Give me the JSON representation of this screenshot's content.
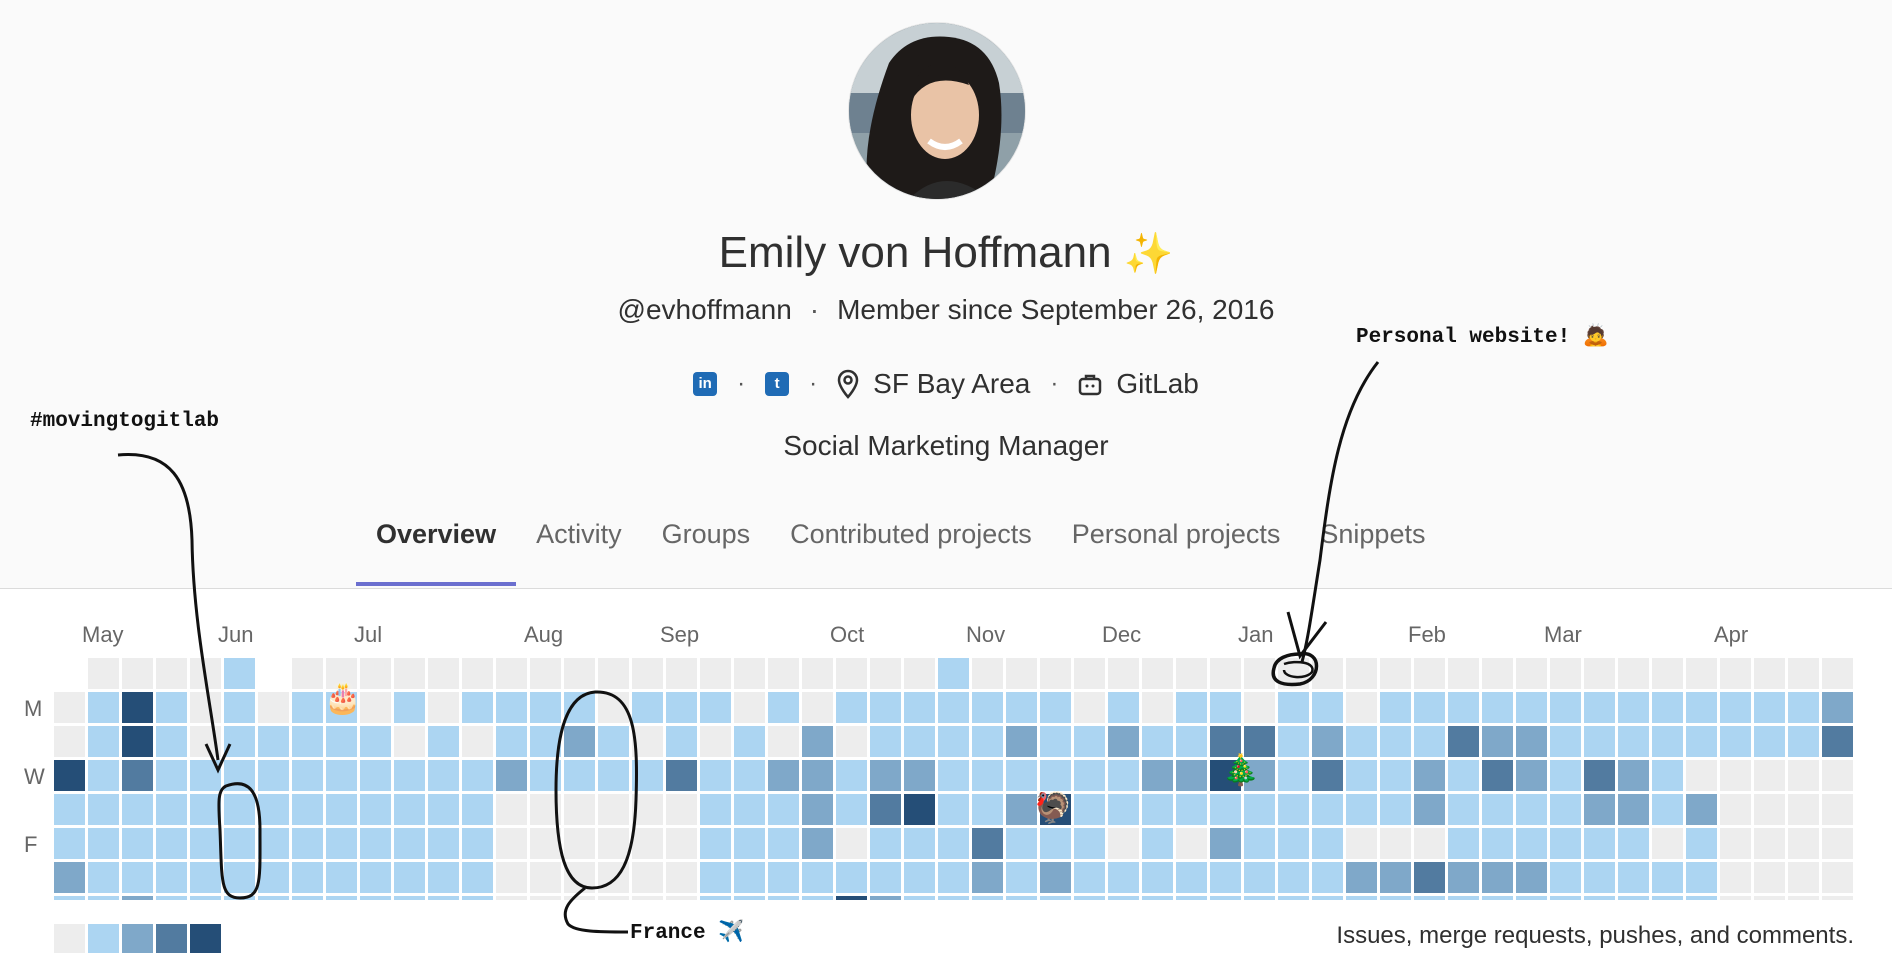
{
  "profile": {
    "name": "Emily von Hoffmann",
    "name_emoji": "✨",
    "username": "@evhoffmann",
    "member_since": "Member since September 26, 2016",
    "separator": "·",
    "location": "SF Bay Area",
    "organization": "GitLab",
    "job_title": "Social Marketing Manager",
    "linkedin_glyph": "in",
    "twitter_glyph": "t"
  },
  "tabs": [
    {
      "label": "Overview",
      "active": true
    },
    {
      "label": "Activity",
      "active": false
    },
    {
      "label": "Groups",
      "active": false
    },
    {
      "label": "Contributed projects",
      "active": false
    },
    {
      "label": "Personal projects",
      "active": false
    },
    {
      "label": "Snippets",
      "active": false
    }
  ],
  "calendar": {
    "months": [
      "May",
      "Jun",
      "Jul",
      "Aug",
      "Sep",
      "Oct",
      "Nov",
      "Dec",
      "Jan",
      "Feb",
      "Mar",
      "Apr"
    ],
    "weekday_labels": [
      "M",
      "W",
      "F"
    ],
    "colors": [
      "#ededed",
      "#acd5f2",
      "#7fa8c9",
      "#527ba0",
      "#254e77"
    ],
    "levels": [
      [
        0,
        1,
        4,
        1,
        0,
        1,
        0,
        1,
        1,
        0,
        1,
        0,
        1,
        1,
        1,
        1,
        0,
        1,
        1,
        1,
        0,
        1,
        0,
        1,
        1,
        1,
        1,
        1,
        1,
        1,
        0,
        1,
        0,
        1,
        1,
        0,
        1,
        1,
        0,
        1,
        1,
        1,
        1,
        1,
        1,
        1,
        1,
        1,
        1,
        1,
        1,
        1,
        2
      ],
      [
        0,
        1,
        4,
        1,
        0,
        1,
        1,
        1,
        1,
        1,
        0,
        1,
        0,
        1,
        1,
        2,
        1,
        0,
        1,
        0,
        1,
        0,
        2,
        0,
        1,
        1,
        1,
        1,
        2,
        1,
        1,
        2,
        1,
        1,
        3,
        3,
        1,
        2,
        1,
        1,
        1,
        3,
        2,
        2,
        1,
        1,
        1,
        1,
        1,
        1,
        1,
        1,
        3
      ],
      [
        4,
        1,
        3,
        1,
        1,
        1,
        1,
        1,
        1,
        1,
        1,
        1,
        1,
        2,
        1,
        1,
        1,
        1,
        3,
        1,
        1,
        2,
        2,
        1,
        2,
        2,
        1,
        1,
        1,
        1,
        1,
        1,
        2,
        2,
        4,
        2,
        1,
        3,
        1,
        1,
        2,
        1,
        3,
        2,
        1,
        3,
        2,
        1,
        0,
        0,
        0,
        0,
        0
      ],
      [
        1,
        1,
        1,
        1,
        1,
        1,
        1,
        1,
        1,
        1,
        1,
        1,
        1,
        0,
        0,
        0,
        0,
        0,
        0,
        1,
        1,
        1,
        2,
        1,
        3,
        4,
        1,
        1,
        2,
        4,
        1,
        1,
        1,
        1,
        1,
        1,
        1,
        1,
        1,
        1,
        2,
        1,
        1,
        1,
        1,
        2,
        2,
        1,
        2,
        0,
        0,
        0,
        0
      ],
      [
        1,
        1,
        1,
        1,
        1,
        1,
        1,
        1,
        1,
        1,
        1,
        1,
        1,
        0,
        0,
        0,
        0,
        0,
        0,
        1,
        1,
        1,
        2,
        0,
        1,
        1,
        1,
        3,
        1,
        1,
        1,
        0,
        1,
        0,
        2,
        1,
        1,
        1,
        0,
        0,
        0,
        1,
        1,
        1,
        1,
        1,
        1,
        0,
        1,
        0,
        0,
        0,
        0
      ],
      [
        2,
        1,
        1,
        1,
        1,
        1,
        1,
        1,
        1,
        1,
        1,
        1,
        1,
        0,
        0,
        0,
        0,
        0,
        0,
        1,
        1,
        1,
        1,
        1,
        1,
        1,
        1,
        2,
        1,
        2,
        1,
        1,
        1,
        1,
        1,
        1,
        1,
        1,
        2,
        2,
        3,
        2,
        2,
        2,
        1,
        1,
        1,
        1,
        1,
        0,
        0,
        0,
        0
      ],
      [
        1,
        1,
        2,
        1,
        1,
        1,
        1,
        1,
        1,
        1,
        1,
        1,
        1,
        0,
        0,
        0,
        0,
        0,
        0,
        1,
        1,
        1,
        1,
        4,
        2,
        1,
        1,
        1,
        1,
        1,
        1,
        1,
        1,
        1,
        1,
        1,
        1,
        1,
        1,
        1,
        1,
        1,
        1,
        1,
        1,
        1,
        1,
        1,
        1,
        0,
        0,
        0,
        0
      ]
    ],
    "empty_top": [
      0,
      1,
      1,
      1,
      1,
      1,
      0,
      1,
      1,
      1,
      1,
      1,
      1,
      1,
      1,
      1,
      1,
      1,
      1,
      1,
      1,
      1,
      1,
      1,
      1,
      1,
      1,
      1,
      1,
      1,
      1,
      1,
      1,
      1,
      1,
      1,
      1,
      1,
      1,
      1,
      1,
      1,
      1,
      1,
      1,
      1,
      1,
      1,
      1,
      1,
      1,
      1,
      1
    ],
    "legend_levels": [
      0,
      1,
      2,
      3,
      4
    ],
    "note": "Issues, merge requests, pushes, and comments.",
    "markers": {
      "birthday": "🎂",
      "thanksgiving": "🦃",
      "christmas": "🎄"
    }
  },
  "annotations": {
    "moving": "#movingtogitlab",
    "website": "Personal website! 🙇",
    "france": "France ✈️"
  }
}
